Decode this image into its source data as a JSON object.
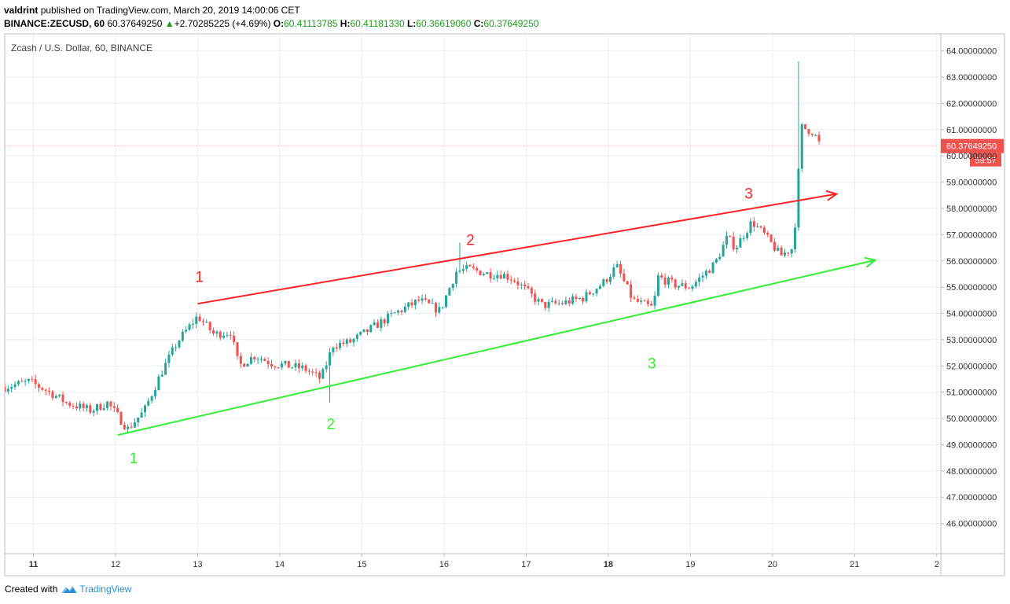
{
  "header": {
    "author": "valdrint",
    "published_text": "published on TradingView.com, March 20, 2019 14:00:06 CET",
    "symbol": "BINANCE:ZECUSD, 60",
    "last": "60.37649250",
    "change_arrow": "▲",
    "change": "+2.70285225 (+4.69%)",
    "o_label": "O:",
    "o_value": "60.41113785",
    "h_label": "H:",
    "h_value": "60.41181330",
    "l_label": "L:",
    "l_value": "60.36619060",
    "c_label": "C:",
    "c_value": "60.37649250"
  },
  "footer": {
    "created_with": "Created with",
    "brand": "TradingView"
  },
  "colors": {
    "up": "#26a69a",
    "down": "#ef5350",
    "resistance": "#ff2222",
    "support": "#33ee33",
    "grid": "#e9eff2",
    "price_tag": "#ef5350"
  },
  "chart_data": {
    "type": "candlestick",
    "title": "Zcash / U.S. Dollar, 60, BINANCE",
    "x_ticks": [
      {
        "label": "11",
        "day": 11
      },
      {
        "label": "12",
        "day": 12
      },
      {
        "label": "13",
        "day": 13
      },
      {
        "label": "14",
        "day": 14
      },
      {
        "label": "15",
        "day": 15
      },
      {
        "label": "16",
        "day": 16
      },
      {
        "label": "17",
        "day": 17
      },
      {
        "label": "18",
        "day": 18
      },
      {
        "label": "19",
        "day": 19
      },
      {
        "label": "20",
        "day": 20
      },
      {
        "label": "21",
        "day": 21
      },
      {
        "label": "2",
        "day": 22
      }
    ],
    "bold_ticks": [
      "11",
      "18"
    ],
    "xlim": [
      10.65,
      22.05
    ],
    "ylim": [
      44.85,
      64.65
    ],
    "y_ticks": [
      "46.00000000",
      "47.00000000",
      "48.00000000",
      "49.00000000",
      "50.00000000",
      "51.00000000",
      "52.00000000",
      "53.00000000",
      "54.00000000",
      "55.00000000",
      "56.00000000",
      "57.00000000",
      "58.00000000",
      "59.00000000",
      "60.00000000",
      "61.00000000",
      "62.00000000",
      "63.00000000",
      "64.00000000"
    ],
    "y_tick_values": [
      46,
      47,
      48,
      49,
      50,
      51,
      52,
      53,
      54,
      55,
      56,
      57,
      58,
      59,
      60,
      61,
      62,
      63,
      64
    ],
    "last_price_label": "60.37649250",
    "last_price": 60.3765,
    "countdown": "59:57",
    "path_anchors": [
      [
        10.65,
        51.2
      ],
      [
        10.95,
        51.4
      ],
      [
        11.2,
        51.0
      ],
      [
        11.4,
        50.6
      ],
      [
        11.7,
        50.3
      ],
      [
        11.9,
        50.6
      ],
      [
        12.15,
        49.6
      ],
      [
        12.35,
        50.3
      ],
      [
        12.55,
        51.7
      ],
      [
        12.75,
        52.9
      ],
      [
        13.0,
        53.9
      ],
      [
        13.2,
        53.2
      ],
      [
        13.4,
        53.3
      ],
      [
        13.5,
        52.0
      ],
      [
        13.7,
        52.4
      ],
      [
        13.9,
        52.1
      ],
      [
        14.3,
        51.9
      ],
      [
        14.5,
        51.5
      ],
      [
        14.65,
        52.8
      ],
      [
        14.85,
        52.9
      ],
      [
        15.1,
        53.4
      ],
      [
        15.4,
        54.0
      ],
      [
        15.7,
        54.5
      ],
      [
        15.95,
        54.1
      ],
      [
        16.15,
        55.6
      ],
      [
        16.3,
        55.7
      ],
      [
        16.55,
        55.5
      ],
      [
        16.7,
        55.5
      ],
      [
        16.85,
        55.3
      ],
      [
        17.2,
        54.3
      ],
      [
        17.45,
        54.4
      ],
      [
        17.7,
        54.6
      ],
      [
        17.95,
        55.2
      ],
      [
        18.1,
        55.8
      ],
      [
        18.3,
        54.5
      ],
      [
        18.55,
        54.2
      ],
      [
        18.6,
        55.4
      ],
      [
        18.8,
        55.1
      ],
      [
        19.0,
        55.0
      ],
      [
        19.3,
        55.9
      ],
      [
        19.45,
        56.9
      ],
      [
        19.55,
        56.5
      ],
      [
        19.75,
        57.5
      ],
      [
        19.9,
        57.0
      ],
      [
        20.1,
        56.2
      ],
      [
        20.25,
        56.5
      ],
      [
        20.29,
        58.0
      ],
      [
        20.35,
        61.1
      ],
      [
        20.5,
        60.9
      ],
      [
        20.58,
        60.4
      ]
    ],
    "annotations": {
      "resistance_line": {
        "color": "red",
        "from": [
          13.0,
          54.37
        ],
        "to": [
          20.78,
          58.55
        ],
        "arrow": true
      },
      "support_line": {
        "color": "green",
        "from": [
          12.03,
          49.37
        ],
        "to": [
          21.25,
          56.03
        ],
        "arrow": true
      },
      "labels": [
        {
          "text": "1",
          "color": "red",
          "x": 13.02,
          "y": 55.2
        },
        {
          "text": "2",
          "color": "red",
          "x": 16.32,
          "y": 56.6
        },
        {
          "text": "3",
          "color": "red",
          "x": 19.71,
          "y": 58.38
        },
        {
          "text": "1",
          "color": "green",
          "x": 12.22,
          "y": 48.3
        },
        {
          "text": "2",
          "color": "green",
          "x": 14.62,
          "y": 49.6
        },
        {
          "text": "3",
          "color": "green",
          "x": 18.53,
          "y": 51.9
        }
      ]
    }
  }
}
